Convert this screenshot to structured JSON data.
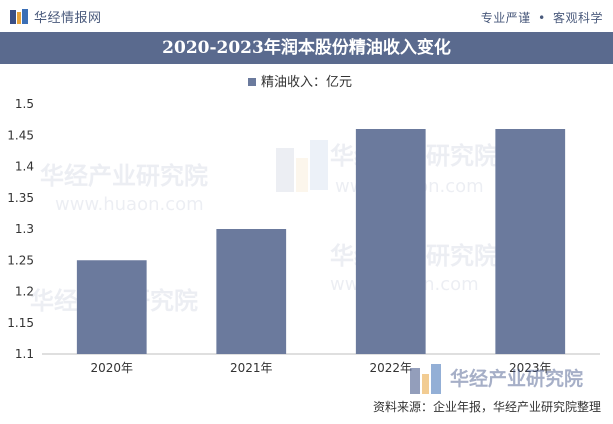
{
  "header": {
    "logo_text": "华经情报网",
    "slogan_left": "专业严谨",
    "slogan_sep": "•",
    "slogan_right": "客观科学"
  },
  "title": "2020-2023年润本股份精油收入变化",
  "source": "资料来源：企业年报，华经产业研究院整理",
  "watermark": {
    "cn": "华经产业研究院",
    "url": "www.huaon.com"
  },
  "colors": {
    "bar": "#6b7a9d",
    "title_bg": "#5a6a8e",
    "brand": "#4a5a7c"
  },
  "chart_data": {
    "type": "bar",
    "categories": [
      "2020年",
      "2021年",
      "2022年",
      "2023年"
    ],
    "series": [
      {
        "name": "精油收入：亿元",
        "values": [
          1.25,
          1.3,
          1.46,
          1.46
        ]
      }
    ],
    "ylim": [
      1.1,
      1.5
    ],
    "yticks": [
      1.1,
      1.15,
      1.2,
      1.25,
      1.3,
      1.35,
      1.4,
      1.45,
      1.5
    ],
    "ytick_labels": [
      "1.1",
      "1.15",
      "1.2",
      "1.25",
      "1.3",
      "1.35",
      "1.4",
      "1.45",
      "1.5"
    ],
    "grid": false,
    "legend_position": "top-center"
  }
}
